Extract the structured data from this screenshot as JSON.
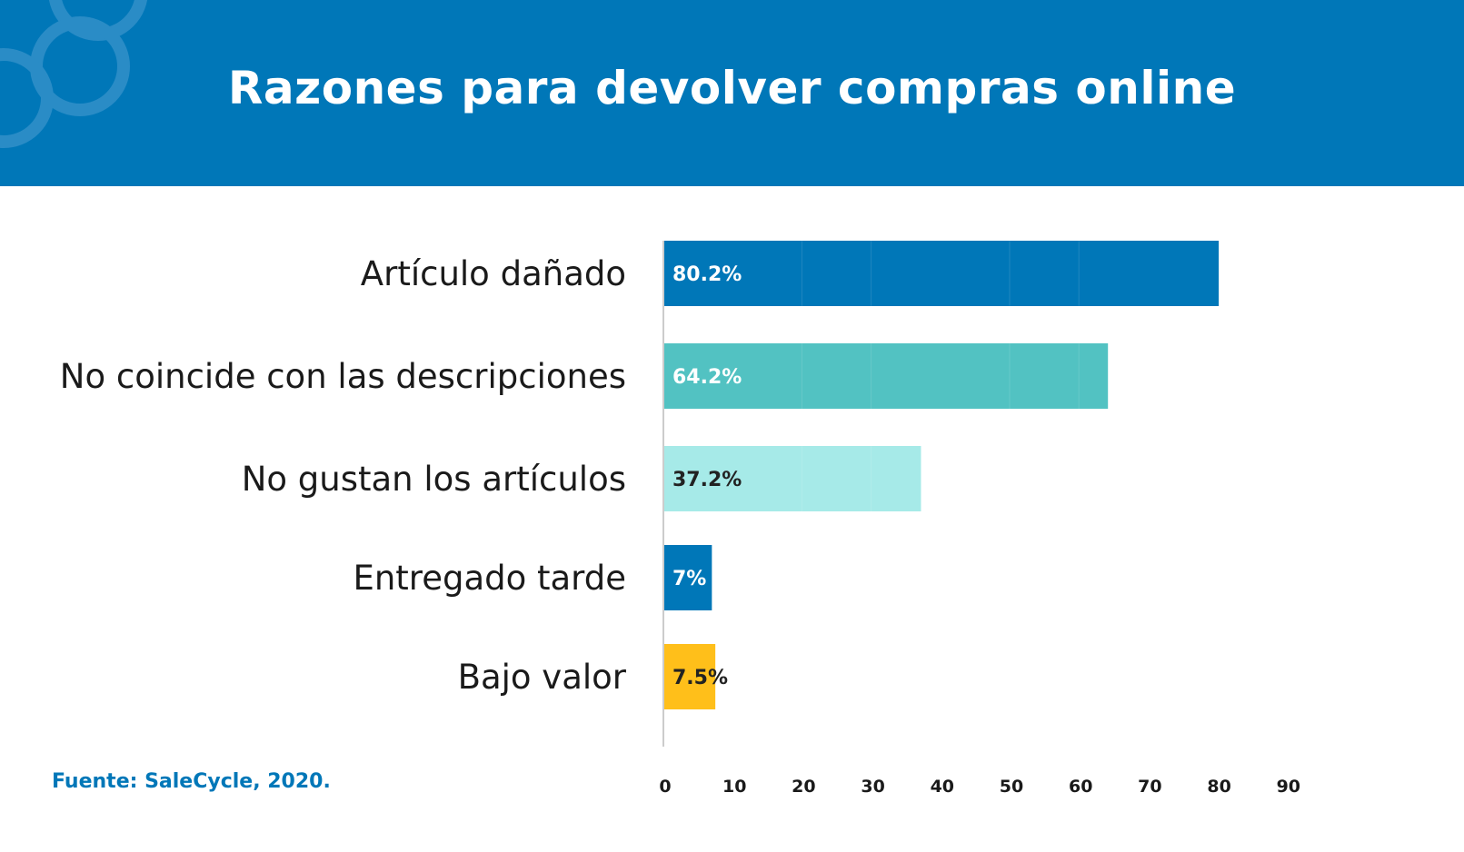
{
  "header": {
    "title": "Razones para devolver compras online",
    "color": "#0077b8"
  },
  "source": "Fuente: SaleCycle, 2020.",
  "chart_data": {
    "type": "bar",
    "orientation": "horizontal",
    "title": "Razones para devolver compras online",
    "categories": [
      "Artículo dañado",
      "No coincide con las descripciones",
      "No gustan los artículos",
      "Entregado tarde",
      "Bajo valor"
    ],
    "values": [
      80.2,
      64.2,
      37.2,
      7,
      7.5
    ],
    "labels": [
      "80.2%",
      "64.2%",
      "37.2%",
      "7%",
      "7.5%"
    ],
    "colors": [
      "#0077b8",
      "#52c2c2",
      "#a6eae8",
      "#0077b8",
      "#ffbf1a"
    ],
    "label_colors": [
      "#ffffff",
      "#ffffff",
      "#222222",
      "#ffffff",
      "#222222"
    ],
    "xlim": [
      0,
      90
    ],
    "xticks": [
      "0",
      "10",
      "20",
      "30",
      "40",
      "50",
      "60",
      "70",
      "80",
      "90"
    ],
    "grid": false
  }
}
